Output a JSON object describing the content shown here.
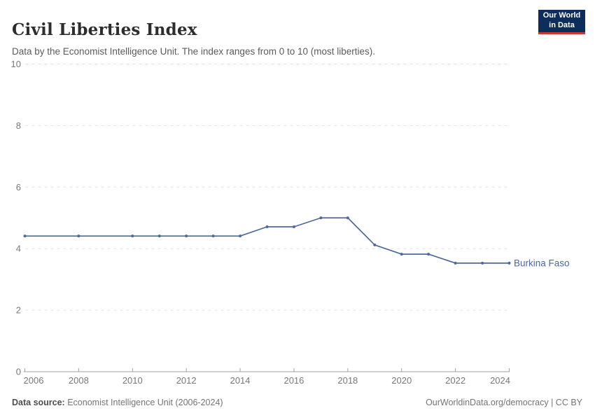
{
  "header": {
    "title": "Civil Liberties Index",
    "subtitle": "Data by the Economist Intelligence Unit. The index ranges from 0 to 10 (most liberties)."
  },
  "logo": {
    "line1": "Our World",
    "line2": "in Data",
    "bg_color": "#0d2e5c",
    "accent_color": "#cd3731"
  },
  "footer": {
    "source_label": "Data source:",
    "source_text": "Economist Intelligence Unit (2006-2024)",
    "link_text": "OurWorldinData.org/democracy | CC BY"
  },
  "chart_data": {
    "type": "line",
    "title": "Civil Liberties Index",
    "xlabel": "",
    "ylabel": "",
    "x": [
      2006,
      2008,
      2010,
      2011,
      2012,
      2013,
      2014,
      2015,
      2016,
      2017,
      2018,
      2019,
      2020,
      2021,
      2022,
      2023,
      2024
    ],
    "series": [
      {
        "name": "Burkina Faso",
        "color": "#4c6a9c",
        "values": [
          4.41,
          4.41,
          4.41,
          4.41,
          4.41,
          4.41,
          4.41,
          4.71,
          4.71,
          5.0,
          5.0,
          4.12,
          3.82,
          3.82,
          3.53,
          3.53,
          3.53
        ]
      }
    ],
    "xticks": [
      2006,
      2008,
      2010,
      2012,
      2014,
      2016,
      2018,
      2020,
      2022,
      2024
    ],
    "yticks": [
      0,
      2,
      4,
      6,
      8,
      10
    ],
    "xlim": [
      2006,
      2024
    ],
    "ylim": [
      0,
      10
    ],
    "grid": "horizontal-dashed",
    "legend": "line-end-label",
    "colors": {
      "grid": "#e2e2e2",
      "axis": "#a1a1a1",
      "tick_label": "#787878"
    }
  }
}
